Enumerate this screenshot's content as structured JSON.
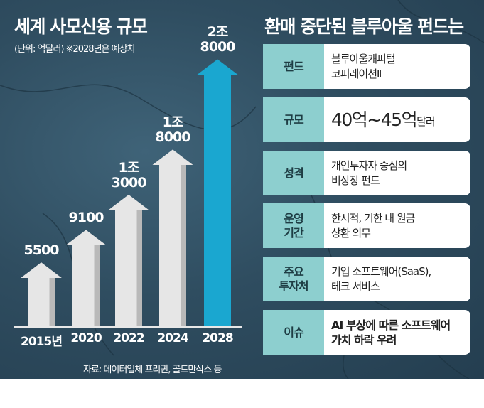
{
  "left": {
    "title": "세계 사모신용 규모",
    "subtitle": "(단위: 억달러) ※2028년은 예상치",
    "source": "자료: 데이터업체 프리퀸, 골드만삭스 등"
  },
  "chart_data": {
    "type": "bar",
    "categories": [
      "2015년",
      "2020",
      "2022",
      "2024",
      "2028"
    ],
    "values": [
      5500,
      9100,
      13000,
      18000,
      28000
    ],
    "data_labels": [
      "5500",
      "9100",
      "1조\n3000",
      "1조\n8000",
      "2조\n8000"
    ],
    "unit": "억달러",
    "forecast_category": "2028",
    "colors": {
      "bar": "#e6e6e6",
      "forecast": "#1aa7d0"
    }
  },
  "right": {
    "title": "환매 중단된 블루아울 펀드는",
    "rows": [
      {
        "label": "펀드",
        "lines": [
          "블루아울캐피털",
          "코퍼레이션Ⅱ"
        ]
      },
      {
        "label": "규모",
        "big1": "40억~45억",
        "small": "달러"
      },
      {
        "label": "성격",
        "lines": [
          "개인투자자 중심의",
          "비상장 펀드"
        ]
      },
      {
        "label": "운영\n기간",
        "lines": [
          "한시적, 기한 내 원금",
          "상환 의무"
        ]
      },
      {
        "label": "주요\n투자처",
        "lines": [
          "기업 소프트웨어(SaaS),",
          "테크 서비스"
        ]
      },
      {
        "label": "이슈",
        "lines": [
          "AI 부상에 따른 소프트웨어",
          "가치 하락 우려"
        ]
      }
    ]
  },
  "colors": {
    "background": "#2f4d60",
    "label_cell": "#8dcfcf",
    "accent": "#1aa7d0"
  }
}
